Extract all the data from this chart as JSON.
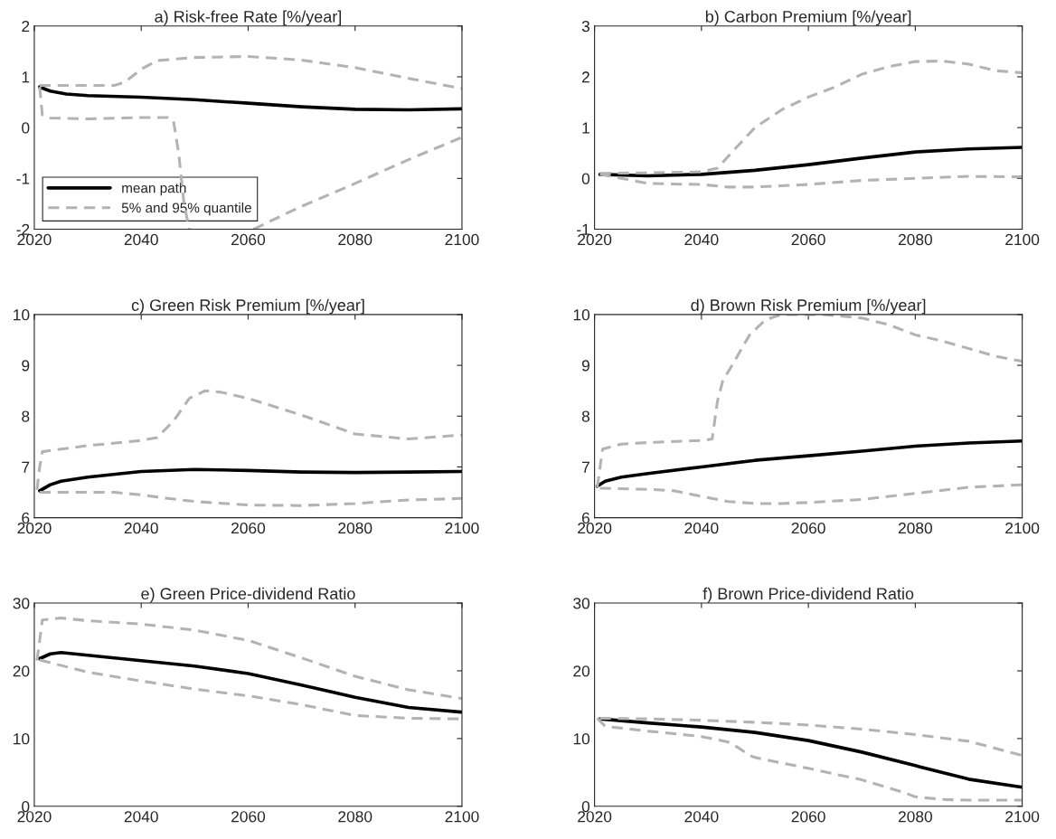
{
  "chart_data": [
    {
      "type": "line",
      "title": "a) Risk-free Rate [%/year]",
      "xlim": [
        2020,
        2100
      ],
      "xticks": [
        2020,
        2040,
        2060,
        2080,
        2100
      ],
      "ylim": [
        -2,
        2
      ],
      "yticks": [
        -2,
        -1,
        0,
        1,
        2
      ],
      "legend": "bottom left",
      "series": [
        {
          "name": "mean path",
          "color": "#000000",
          "line_style": "solid",
          "x": [
            2021,
            2023,
            2026,
            2030,
            2040,
            2050,
            2060,
            2070,
            2080,
            2090,
            2100
          ],
          "values": [
            0.8,
            0.72,
            0.66,
            0.63,
            0.6,
            0.55,
            0.48,
            0.41,
            0.36,
            0.35,
            0.37
          ]
        },
        {
          "name": "5% and 95% quantile",
          "color": "#b3b3b3",
          "line_style": "dashed",
          "x": [
            2021,
            2035,
            2037,
            2040,
            2043,
            2050,
            2060,
            2070,
            2080,
            2090,
            2100
          ],
          "values": [
            0.83,
            0.83,
            0.9,
            1.15,
            1.32,
            1.38,
            1.4,
            1.33,
            1.18,
            0.97,
            0.77
          ]
        },
        {
          "color": "#b3b3b3",
          "line_style": "dashed",
          "x": [
            2021,
            2021.5,
            2023,
            2030,
            2040,
            2045,
            2046,
            2047,
            2048,
            2049,
            2055,
            2061,
            2070,
            2080,
            2090,
            2100
          ],
          "values": [
            0.8,
            0.25,
            0.19,
            0.17,
            0.2,
            0.2,
            0.15,
            -0.5,
            -1.5,
            -2.0,
            null,
            -2.0,
            -1.55,
            -1.1,
            -0.63,
            -0.19
          ]
        }
      ]
    },
    {
      "type": "line",
      "title": "b) Carbon Premium [%/year]",
      "xlim": [
        2020,
        2100
      ],
      "xticks": [
        2020,
        2040,
        2060,
        2080,
        2100
      ],
      "ylim": [
        -1,
        3
      ],
      "yticks": [
        -1,
        0,
        1,
        2,
        3
      ],
      "series": [
        {
          "color": "#000000",
          "line_style": "solid",
          "x": [
            2021,
            2030,
            2040,
            2050,
            2060,
            2070,
            2080,
            2090,
            2100
          ],
          "values": [
            0.08,
            0.05,
            0.08,
            0.16,
            0.27,
            0.4,
            0.52,
            0.58,
            0.61
          ]
        },
        {
          "color": "#b3b3b3",
          "line_style": "dashed",
          "x": [
            2021,
            2030,
            2040,
            2043,
            2046,
            2050,
            2055,
            2060,
            2065,
            2070,
            2075,
            2080,
            2085,
            2090,
            2095,
            2100
          ],
          "values": [
            0.1,
            0.11,
            0.13,
            0.2,
            0.55,
            1.0,
            1.35,
            1.6,
            1.8,
            2.05,
            2.2,
            2.3,
            2.31,
            2.25,
            2.12,
            2.08
          ]
        },
        {
          "color": "#b3b3b3",
          "line_style": "dashed",
          "x": [
            2021,
            2025,
            2030,
            2040,
            2045,
            2050,
            2060,
            2070,
            2080,
            2090,
            2100
          ],
          "values": [
            0.08,
            0.0,
            -0.1,
            -0.12,
            -0.17,
            -0.17,
            -0.12,
            -0.04,
            0.0,
            0.04,
            0.03
          ]
        }
      ]
    },
    {
      "type": "line",
      "title": "c) Green Risk Premium [%/year]",
      "xlim": [
        2020,
        2100
      ],
      "xticks": [
        2020,
        2040,
        2060,
        2080,
        2100
      ],
      "ylim": [
        6,
        10
      ],
      "yticks": [
        6,
        7,
        8,
        9,
        10
      ],
      "series": [
        {
          "color": "#000000",
          "line_style": "solid",
          "x": [
            2021,
            2023,
            2025,
            2030,
            2040,
            2050,
            2060,
            2070,
            2080,
            2090,
            2100
          ],
          "values": [
            6.53,
            6.65,
            6.72,
            6.8,
            6.91,
            6.95,
            6.93,
            6.9,
            6.89,
            6.9,
            6.91
          ]
        },
        {
          "color": "#b3b3b3",
          "line_style": "dashed",
          "x": [
            2020.5,
            2021,
            2021.5,
            2025,
            2030,
            2040,
            2043,
            2046,
            2049,
            2052,
            2055,
            2060,
            2070,
            2080,
            2090,
            2100
          ],
          "values": [
            6.55,
            7.0,
            7.3,
            7.35,
            7.42,
            7.52,
            7.58,
            7.9,
            8.35,
            8.5,
            8.47,
            8.35,
            8.02,
            7.65,
            7.55,
            7.63
          ]
        },
        {
          "color": "#b3b3b3",
          "line_style": "dashed",
          "x": [
            2021,
            2035,
            2040,
            2045,
            2050,
            2060,
            2070,
            2080,
            2090,
            2100
          ],
          "values": [
            6.5,
            6.5,
            6.45,
            6.38,
            6.32,
            6.25,
            6.24,
            6.28,
            6.35,
            6.38
          ]
        }
      ]
    },
    {
      "type": "line",
      "title": "d) Brown Risk Premium [%/year]",
      "xlim": [
        2020,
        2100
      ],
      "xticks": [
        2020,
        2040,
        2060,
        2080,
        2100
      ],
      "ylim": [
        6,
        10
      ],
      "yticks": [
        6,
        7,
        8,
        9,
        10
      ],
      "series": [
        {
          "color": "#000000",
          "line_style": "solid",
          "x": [
            2020.5,
            2022,
            2025,
            2030,
            2040,
            2050,
            2060,
            2070,
            2080,
            2090,
            2100
          ],
          "values": [
            6.62,
            6.72,
            6.8,
            6.87,
            7.0,
            7.13,
            7.22,
            7.31,
            7.41,
            7.47,
            7.51
          ]
        },
        {
          "color": "#b3b3b3",
          "line_style": "dashed",
          "x": [
            2020.5,
            2021.5,
            2025,
            2030,
            2040,
            2042,
            2043,
            2044,
            2046,
            2049,
            2052,
            2055,
            2063,
            2070,
            2075,
            2080,
            2085,
            2090,
            2095,
            2100
          ],
          "values": [
            6.6,
            7.35,
            7.45,
            7.48,
            7.52,
            7.55,
            8.3,
            8.7,
            9.05,
            9.6,
            9.9,
            10.0,
            10.0,
            9.93,
            9.8,
            9.6,
            9.48,
            9.33,
            9.18,
            9.08
          ]
        },
        {
          "color": "#b3b3b3",
          "line_style": "dashed",
          "x": [
            2021,
            2030,
            2035,
            2040,
            2045,
            2050,
            2055,
            2060,
            2070,
            2080,
            2090,
            2100
          ],
          "values": [
            6.58,
            6.56,
            6.53,
            6.42,
            6.32,
            6.28,
            6.28,
            6.3,
            6.36,
            6.48,
            6.6,
            6.65
          ]
        }
      ]
    },
    {
      "type": "line",
      "title": "e) Green Price-dividend Ratio",
      "xlim": [
        2020,
        2100
      ],
      "xticks": [
        2020,
        2040,
        2060,
        2080,
        2100
      ],
      "ylim": [
        0,
        30
      ],
      "yticks": [
        0,
        10,
        20,
        30
      ],
      "series": [
        {
          "color": "#000000",
          "line_style": "solid",
          "x": [
            2021,
            2023,
            2025,
            2030,
            2040,
            2050,
            2060,
            2070,
            2080,
            2090,
            2100
          ],
          "values": [
            21.8,
            22.5,
            22.7,
            22.3,
            21.5,
            20.7,
            19.6,
            17.9,
            16.1,
            14.6,
            13.9
          ]
        },
        {
          "color": "#b3b3b3",
          "line_style": "dashed",
          "x": [
            2020.5,
            2021.5,
            2025,
            2030,
            2040,
            2050,
            2060,
            2070,
            2080,
            2090,
            2100
          ],
          "values": [
            21.5,
            27.5,
            27.8,
            27.4,
            26.9,
            26.0,
            24.5,
            21.9,
            19.2,
            17.2,
            15.9
          ]
        },
        {
          "color": "#b3b3b3",
          "line_style": "dashed",
          "x": [
            2021,
            2030,
            2040,
            2050,
            2060,
            2070,
            2080,
            2090,
            2100
          ],
          "values": [
            21.6,
            19.8,
            18.5,
            17.3,
            16.3,
            15.0,
            13.4,
            13.0,
            12.9
          ]
        }
      ]
    },
    {
      "type": "line",
      "title": "f) Brown Price-dividend Ratio",
      "xlim": [
        2020,
        2100
      ],
      "xticks": [
        2020,
        2040,
        2060,
        2080,
        2100
      ],
      "ylim": [
        0,
        30
      ],
      "yticks": [
        0,
        10,
        20,
        30
      ],
      "series": [
        {
          "color": "#000000",
          "line_style": "solid",
          "x": [
            2021,
            2030,
            2040,
            2050,
            2060,
            2070,
            2080,
            2090,
            2100
          ],
          "values": [
            12.9,
            12.3,
            11.7,
            10.9,
            9.7,
            8.0,
            6.0,
            4.0,
            2.8
          ]
        },
        {
          "color": "#b3b3b3",
          "line_style": "dashed",
          "x": [
            2021,
            2030,
            2040,
            2050,
            2060,
            2070,
            2080,
            2090,
            2100
          ],
          "values": [
            13.0,
            12.9,
            12.7,
            12.4,
            12.0,
            11.4,
            10.6,
            9.6,
            7.5
          ]
        },
        {
          "color": "#b3b3b3",
          "line_style": "dashed",
          "x": [
            2020.5,
            2022,
            2030,
            2040,
            2045,
            2047,
            2049,
            2050,
            2060,
            2070,
            2078,
            2080,
            2085,
            2090,
            2100
          ],
          "values": [
            13.0,
            11.8,
            11.1,
            10.3,
            9.5,
            8.6,
            7.5,
            7.2,
            5.6,
            3.9,
            2.0,
            1.4,
            1.0,
            0.9,
            0.9
          ]
        }
      ]
    }
  ]
}
